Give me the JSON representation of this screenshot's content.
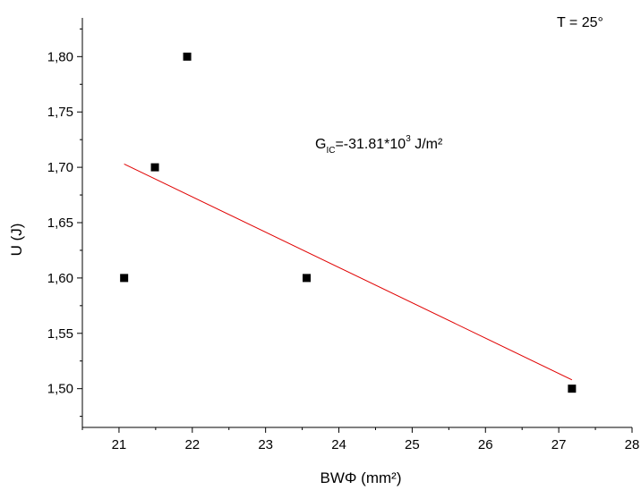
{
  "chart_data": {
    "type": "scatter",
    "xlabel": "BWΦ  (mm²)",
    "ylabel": "U (J)",
    "xlim": [
      20.5,
      28
    ],
    "ylim": [
      1.465,
      1.835
    ],
    "x_ticks": [
      21,
      22,
      23,
      24,
      25,
      26,
      27,
      28
    ],
    "x_tick_labels": [
      "21",
      "22",
      "23",
      "24",
      "25",
      "26",
      "27",
      "28"
    ],
    "y_ticks": [
      1.5,
      1.55,
      1.6,
      1.65,
      1.7,
      1.75,
      1.8
    ],
    "y_tick_labels": [
      "1,50",
      "1,55",
      "1,60",
      "1,65",
      "1,70",
      "1,75",
      "1,80"
    ],
    "grid": false,
    "legend": "none",
    "series": [
      {
        "type": "scatter",
        "marker": "square",
        "color": "#000000",
        "points": [
          {
            "x": 21.07,
            "y": 1.6
          },
          {
            "x": 21.49,
            "y": 1.7
          },
          {
            "x": 21.93,
            "y": 1.8
          },
          {
            "x": 23.56,
            "y": 1.6
          },
          {
            "x": 27.18,
            "y": 1.5
          }
        ]
      },
      {
        "type": "line",
        "color": "#e00000",
        "points": [
          {
            "x": 21.07,
            "y": 1.703
          },
          {
            "x": 27.18,
            "y": 1.508
          }
        ]
      }
    ],
    "annotations": {
      "temperature": "T = 25°",
      "g_main": "G",
      "g_sub": "IC",
      "g_mid": "=-31.81*10",
      "g_sup": "3",
      "g_unit": " J/m²"
    }
  }
}
